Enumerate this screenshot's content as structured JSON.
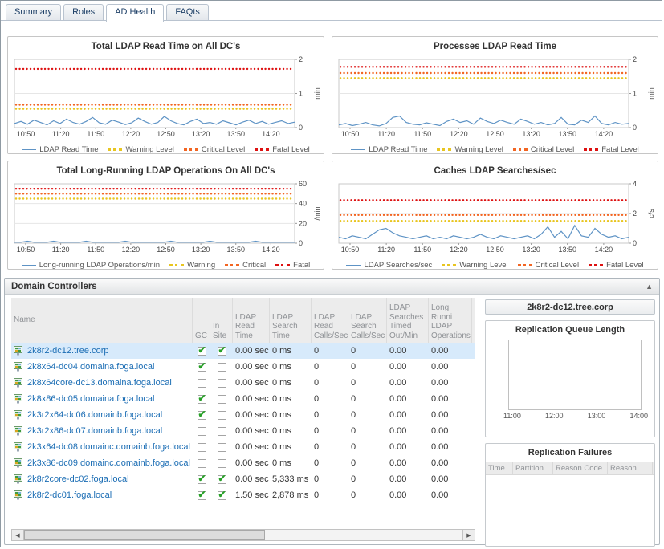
{
  "icons": {
    "collapse": "▲",
    "scroll_left": "◀",
    "scroll_right": "▶",
    "check": "✔"
  },
  "tabs": {
    "items": [
      {
        "label": "Summary",
        "active": false
      },
      {
        "label": "Roles",
        "active": false
      },
      {
        "label": "AD Health",
        "active": true
      },
      {
        "label": "FAQts",
        "active": false
      }
    ]
  },
  "chart_data": [
    {
      "type": "line",
      "title": "Total LDAP Read Time on All DC's",
      "ylabel": "min",
      "ylim": [
        0,
        2
      ],
      "yticks": [
        0,
        1,
        2
      ],
      "x_labels": [
        "10:50",
        "11:20",
        "11:50",
        "12:20",
        "12:50",
        "13:20",
        "13:50",
        "14:20"
      ],
      "series": [
        {
          "name": "LDAP Read Time",
          "color": "#5e93c5",
          "values": [
            0.12,
            0.18,
            0.1,
            0.22,
            0.15,
            0.08,
            0.2,
            0.12,
            0.25,
            0.15,
            0.1,
            0.18,
            0.3,
            0.14,
            0.1,
            0.22,
            0.16,
            0.09,
            0.14,
            0.28,
            0.18,
            0.1,
            0.15,
            0.33,
            0.2,
            0.12,
            0.08,
            0.18,
            0.25,
            0.12,
            0.15,
            0.1,
            0.2,
            0.14,
            0.08,
            0.16,
            0.22,
            0.12,
            0.18,
            0.1,
            0.15,
            0.2,
            0.12,
            0.16
          ]
        }
      ],
      "thresholds": [
        {
          "name": "Warning Level",
          "value": 0.55,
          "color": "#e8c520"
        },
        {
          "name": "Critical Level",
          "value": 0.67,
          "color": "#f26522"
        },
        {
          "name": "Fatal Level",
          "value": 1.72,
          "color": "#dd1111"
        }
      ]
    },
    {
      "type": "line",
      "title": "Processes LDAP Read Time",
      "ylabel": "min",
      "ylim": [
        0,
        2
      ],
      "yticks": [
        0,
        1,
        2
      ],
      "x_labels": [
        "10:50",
        "11:20",
        "11:50",
        "12:20",
        "12:50",
        "13:20",
        "13:50",
        "14:20"
      ],
      "series": [
        {
          "name": "LDAP Read Time",
          "color": "#5e93c5",
          "values": [
            0.08,
            0.12,
            0.06,
            0.1,
            0.15,
            0.08,
            0.05,
            0.12,
            0.3,
            0.34,
            0.15,
            0.1,
            0.08,
            0.14,
            0.1,
            0.06,
            0.18,
            0.25,
            0.15,
            0.2,
            0.1,
            0.28,
            0.18,
            0.12,
            0.22,
            0.15,
            0.1,
            0.25,
            0.18,
            0.1,
            0.15,
            0.08,
            0.12,
            0.3,
            0.1,
            0.08,
            0.22,
            0.15,
            0.34,
            0.12,
            0.08,
            0.15,
            0.1,
            0.12
          ]
        }
      ],
      "thresholds": [
        {
          "name": "Warning Level",
          "value": 1.45,
          "color": "#e8c520"
        },
        {
          "name": "Critical Level",
          "value": 1.6,
          "color": "#f26522"
        },
        {
          "name": "Fatal Level",
          "value": 1.78,
          "color": "#dd1111"
        }
      ]
    },
    {
      "type": "line",
      "title": "Total Long-Running LDAP Operations On All DC's",
      "ylabel": "/min",
      "ylim": [
        0,
        60
      ],
      "yticks": [
        0,
        20,
        40,
        60
      ],
      "x_labels": [
        "10:50",
        "11:20",
        "11:50",
        "12:20",
        "12:50",
        "13:20",
        "13:50",
        "14:20"
      ],
      "series": [
        {
          "name": "Long-running LDAP Operations/min",
          "color": "#5e93c5",
          "values": [
            1,
            1,
            2,
            1,
            1,
            1,
            2,
            1,
            1,
            1,
            1,
            2,
            1,
            1,
            1,
            1,
            1,
            2,
            1,
            1,
            1,
            1,
            1,
            1,
            2,
            1,
            1,
            1,
            1,
            1,
            2,
            1,
            1,
            1,
            1,
            1,
            1,
            2,
            1,
            1,
            1,
            1,
            1,
            1
          ]
        }
      ],
      "thresholds": [
        {
          "name": "Warning",
          "value": 45,
          "color": "#e8c520"
        },
        {
          "name": "Critical",
          "value": 50,
          "color": "#f26522"
        },
        {
          "name": "Fatal",
          "value": 55,
          "color": "#dd1111"
        }
      ]
    },
    {
      "type": "line",
      "title": "Caches LDAP Searches/sec",
      "ylabel": "c/s",
      "ylim": [
        0,
        4
      ],
      "yticks": [
        0,
        2,
        4
      ],
      "x_labels": [
        "10:50",
        "11:20",
        "11:50",
        "12:20",
        "12:50",
        "13:20",
        "13:50",
        "14:20"
      ],
      "series": [
        {
          "name": "LDAP Searches/sec",
          "color": "#5e93c5",
          "values": [
            0.4,
            0.3,
            0.5,
            0.4,
            0.3,
            0.6,
            0.9,
            1.0,
            0.7,
            0.5,
            0.4,
            0.3,
            0.4,
            0.5,
            0.3,
            0.4,
            0.3,
            0.5,
            0.4,
            0.3,
            0.4,
            0.6,
            0.4,
            0.3,
            0.5,
            0.4,
            0.3,
            0.4,
            0.5,
            0.3,
            0.6,
            1.1,
            0.4,
            0.8,
            0.3,
            1.2,
            0.5,
            0.4,
            1.0,
            0.6,
            0.4,
            0.5,
            0.3,
            0.4
          ]
        }
      ],
      "thresholds": [
        {
          "name": "Warning Level",
          "value": 1.5,
          "color": "#e8c520"
        },
        {
          "name": "Critical Level",
          "value": 1.9,
          "color": "#f26522"
        },
        {
          "name": "Fatal Level",
          "value": 2.9,
          "color": "#dd1111"
        }
      ]
    },
    {
      "type": "line",
      "title": "Replication Queue Length",
      "ylabel": "",
      "ylim": [
        0,
        1
      ],
      "yticks": [],
      "x_labels": [
        "11:00",
        "12:00",
        "13:00",
        "14:00"
      ],
      "series": [],
      "thresholds": []
    }
  ],
  "domain_controllers": {
    "title": "Domain Controllers",
    "columns": [
      "Name",
      "GC",
      "In Site",
      "LDAP Read Time",
      "LDAP Search Time",
      "LDAP Read Calls/Sec",
      "LDAP Search Calls/Sec",
      "LDAP Searches Timed Out/Min",
      "Long Runni LDAP Operations"
    ],
    "rows": [
      {
        "name": "2k8r2-dc12.tree.corp",
        "gc": true,
        "in_site": true,
        "ldap_read_time": "0.00 sec",
        "ldap_search_time": "0 ms",
        "ldap_read_calls": "0",
        "ldap_search_calls": "0",
        "ldap_searches_timed_out": "0.00",
        "long_running_ops": "0.00",
        "selected": true
      },
      {
        "name": "2k8x64-dc04.domaina.foga.local",
        "gc": true,
        "in_site": false,
        "ldap_read_time": "0.00 sec",
        "ldap_search_time": "0 ms",
        "ldap_read_calls": "0",
        "ldap_search_calls": "0",
        "ldap_searches_timed_out": "0.00",
        "long_running_ops": "0.00",
        "selected": false
      },
      {
        "name": "2k8x64core-dc13.domaina.foga.local",
        "gc": false,
        "in_site": false,
        "ldap_read_time": "0.00 sec",
        "ldap_search_time": "0 ms",
        "ldap_read_calls": "0",
        "ldap_search_calls": "0",
        "ldap_searches_timed_out": "0.00",
        "long_running_ops": "0.00",
        "selected": false
      },
      {
        "name": "2k8x86-dc05.domaina.foga.local",
        "gc": true,
        "in_site": false,
        "ldap_read_time": "0.00 sec",
        "ldap_search_time": "0 ms",
        "ldap_read_calls": "0",
        "ldap_search_calls": "0",
        "ldap_searches_timed_out": "0.00",
        "long_running_ops": "0.00",
        "selected": false
      },
      {
        "name": "2k3r2x64-dc06.domainb.foga.local",
        "gc": true,
        "in_site": false,
        "ldap_read_time": "0.00 sec",
        "ldap_search_time": "0 ms",
        "ldap_read_calls": "0",
        "ldap_search_calls": "0",
        "ldap_searches_timed_out": "0.00",
        "long_running_ops": "0.00",
        "selected": false
      },
      {
        "name": "2k3r2x86-dc07.domainb.foga.local",
        "gc": false,
        "in_site": false,
        "ldap_read_time": "0.00 sec",
        "ldap_search_time": "0 ms",
        "ldap_read_calls": "0",
        "ldap_search_calls": "0",
        "ldap_searches_timed_out": "0.00",
        "long_running_ops": "0.00",
        "selected": false
      },
      {
        "name": "2k3x64-dc08.domainc.domainb.foga.local",
        "gc": false,
        "in_site": false,
        "ldap_read_time": "0.00 sec",
        "ldap_search_time": "0 ms",
        "ldap_read_calls": "0",
        "ldap_search_calls": "0",
        "ldap_searches_timed_out": "0.00",
        "long_running_ops": "0.00",
        "selected": false
      },
      {
        "name": "2k3x86-dc09.domainc.domainb.foga.local",
        "gc": false,
        "in_site": false,
        "ldap_read_time": "0.00 sec",
        "ldap_search_time": "0 ms",
        "ldap_read_calls": "0",
        "ldap_search_calls": "0",
        "ldap_searches_timed_out": "0.00",
        "long_running_ops": "0.00",
        "selected": false
      },
      {
        "name": "2k8r2core-dc02.foga.local",
        "gc": true,
        "in_site": true,
        "ldap_read_time": "0.00 sec",
        "ldap_search_time": "5,333 ms",
        "ldap_read_calls": "0",
        "ldap_search_calls": "0",
        "ldap_searches_timed_out": "0.00",
        "long_running_ops": "0.00",
        "selected": false
      },
      {
        "name": "2k8r2-dc01.foga.local",
        "gc": true,
        "in_site": true,
        "ldap_read_time": "1.50 sec",
        "ldap_search_time": "2,878 ms",
        "ldap_read_calls": "0",
        "ldap_search_calls": "0",
        "ldap_searches_timed_out": "0.00",
        "long_running_ops": "0.00",
        "selected": false
      }
    ]
  },
  "detail": {
    "title": "2k8r2-dc12.tree.corp",
    "replication_failures": {
      "title": "Replication Failures",
      "columns": [
        "Time",
        "Partition",
        "Reason Code",
        "Reason"
      ]
    }
  }
}
